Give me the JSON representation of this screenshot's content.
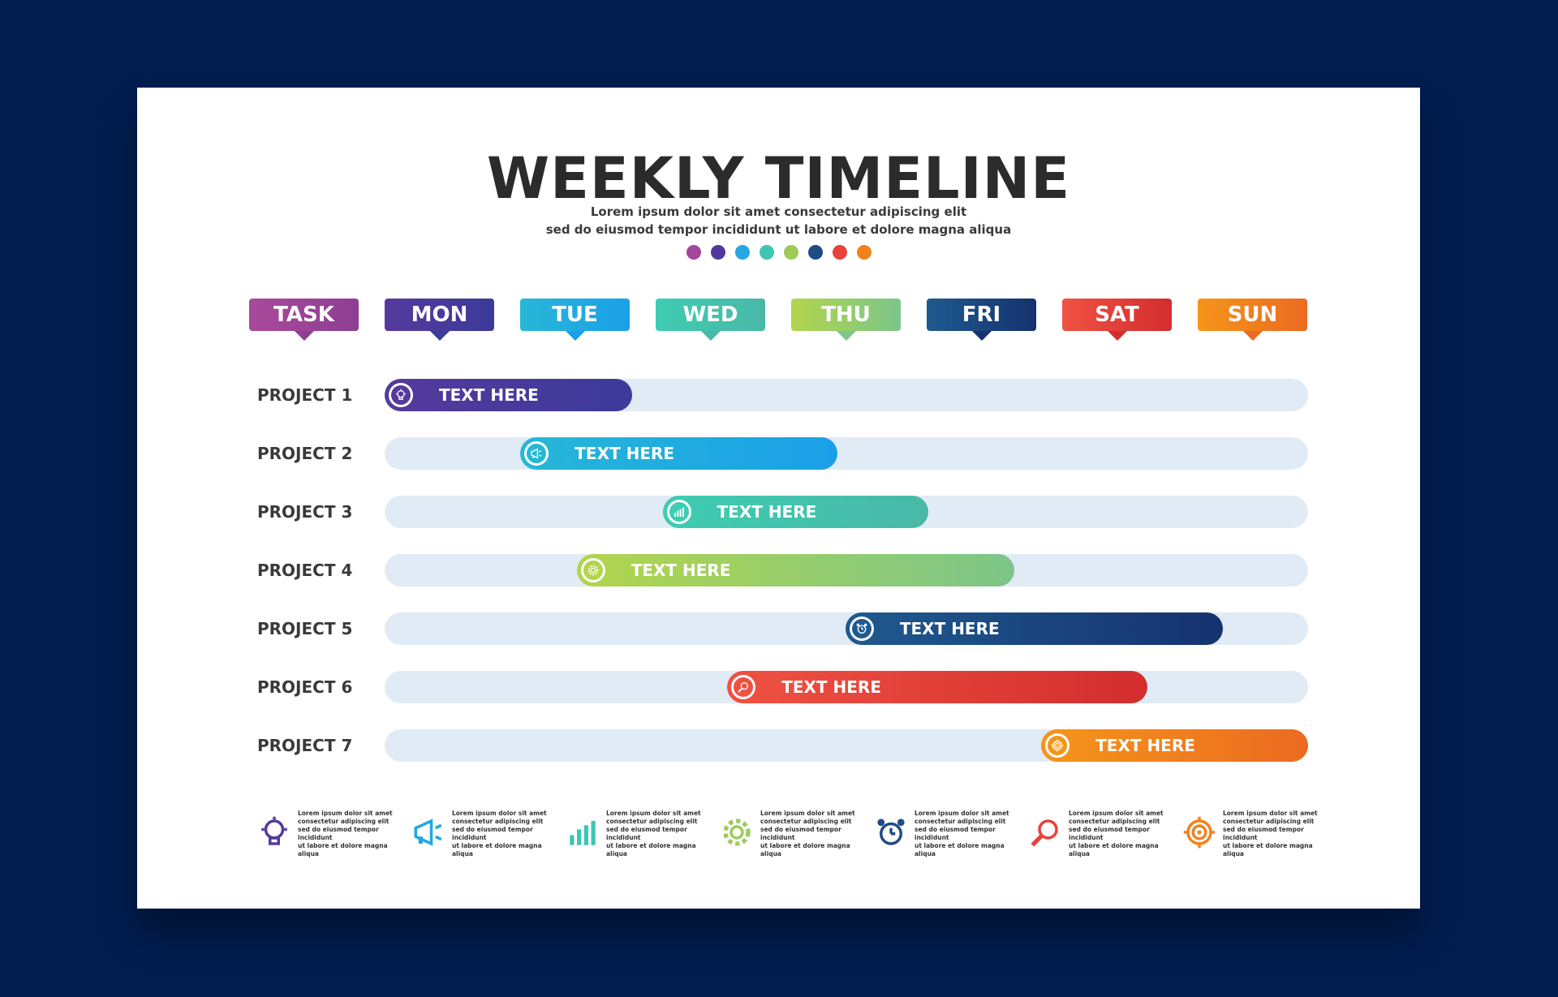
{
  "header": {
    "title": "WEEKLY TIMELINE",
    "subtitle_line1": "Lorem ipsum dolor sit amet consectetur adipiscing elit",
    "subtitle_line2": "sed do eiusmod tempor incididunt ut labore et dolore magna aliqua"
  },
  "palette_dots": [
    "#a2479a",
    "#4f3a9c",
    "#26a7df",
    "#3fc5b3",
    "#9ccb5a",
    "#1e4d86",
    "#e8423a",
    "#f0821e"
  ],
  "columns": [
    {
      "label": "TASK",
      "color_from": "#a94a9b",
      "color_to": "#8e3e93"
    },
    {
      "label": "MON",
      "color_from": "#553a9c",
      "color_to": "#3c3a9a"
    },
    {
      "label": "TUE",
      "color_from": "#27b7d7",
      "color_to": "#1aa0e8"
    },
    {
      "label": "WED",
      "color_from": "#3dcdb2",
      "color_to": "#4ab8a8"
    },
    {
      "label": "THU",
      "color_from": "#b2d54c",
      "color_to": "#7cc68a"
    },
    {
      "label": "FRI",
      "color_from": "#1f5a8f",
      "color_to": "#15326f"
    },
    {
      "label": "SAT",
      "color_from": "#ef5242",
      "color_to": "#d32d2f"
    },
    {
      "label": "SUN",
      "color_from": "#f5951a",
      "color_to": "#ec6a21"
    }
  ],
  "projects": [
    {
      "label": "PROJECT 1",
      "text": "TEXT HERE",
      "start": 0.0,
      "end": 0.268,
      "icon": "lightbulb-icon",
      "color_from": "#553a9c",
      "color_to": "#3c3a9a"
    },
    {
      "label": "PROJECT 2",
      "text": "TEXT HERE",
      "start": 0.147,
      "end": 0.49,
      "icon": "megaphone-icon",
      "color_from": "#27b7d7",
      "color_to": "#1aa0e8"
    },
    {
      "label": "PROJECT 3",
      "text": "TEXT HERE",
      "start": 0.301,
      "end": 0.589,
      "icon": "bar-chart-icon",
      "color_from": "#3dcdb2",
      "color_to": "#4ab8a8"
    },
    {
      "label": "PROJECT 4",
      "text": "TEXT HERE",
      "start": 0.208,
      "end": 0.682,
      "icon": "gear-icon",
      "color_from": "#b2d54c",
      "color_to": "#7cc68a"
    },
    {
      "label": "PROJECT 5",
      "text": "TEXT HERE",
      "start": 0.499,
      "end": 0.908,
      "icon": "alarm-clock-icon",
      "color_from": "#1f5a8f",
      "color_to": "#15326f"
    },
    {
      "label": "PROJECT 6",
      "text": "TEXT HERE",
      "start": 0.371,
      "end": 0.826,
      "icon": "magnifier-icon",
      "color_from": "#ef5242",
      "color_to": "#d32d2f"
    },
    {
      "label": "PROJECT 7",
      "text": "TEXT HERE",
      "start": 0.711,
      "end": 1.0,
      "icon": "target-icon",
      "color_from": "#f5951a",
      "color_to": "#ec6a21"
    }
  ],
  "legend": [
    {
      "icon": "lightbulb-icon",
      "color": "#553a9c",
      "line1": "Lorem ipsum dolor sit amet",
      "line2": "consectetur adipiscing elit",
      "line3": "sed do eiusmod tempor incididunt",
      "line4": "ut labore et dolore magna aliqua"
    },
    {
      "icon": "megaphone-icon",
      "color": "#1fa8e2",
      "line1": "Lorem ipsum dolor sit amet",
      "line2": "consectetur adipiscing elit",
      "line3": "sed do eiusmod tempor incididunt",
      "line4": "ut labore et dolore magna aliqua"
    },
    {
      "icon": "bar-chart-icon",
      "color": "#3fc5b3",
      "line1": "Lorem ipsum dolor sit amet",
      "line2": "consectetur adipiscing elit",
      "line3": "sed do eiusmod tempor incididunt",
      "line4": "ut labore et dolore magna aliqua"
    },
    {
      "icon": "gear-icon",
      "color": "#9ccb5a",
      "line1": "Lorem ipsum dolor sit amet",
      "line2": "consectetur adipiscing elit",
      "line3": "sed do eiusmod tempor incididunt",
      "line4": "ut labore et dolore magna aliqua"
    },
    {
      "icon": "alarm-clock-icon",
      "color": "#1e4d86",
      "line1": "Lorem ipsum dolor sit amet",
      "line2": "consectetur adipiscing elit",
      "line3": "sed do eiusmod tempor incididunt",
      "line4": "ut labore et dolore magna aliqua"
    },
    {
      "icon": "magnifier-icon",
      "color": "#e8423a",
      "line1": "Lorem ipsum dolor sit amet",
      "line2": "consectetur adipiscing elit",
      "line3": "sed do eiusmod tempor incididunt",
      "line4": "ut labore et dolore magna aliqua"
    },
    {
      "icon": "target-icon",
      "color": "#f0821e",
      "line1": "Lorem ipsum dolor sit amet",
      "line2": "consectetur adipiscing elit",
      "line3": "sed do eiusmod tempor incididunt",
      "line4": "ut labore et dolore magna aliqua"
    }
  ]
}
